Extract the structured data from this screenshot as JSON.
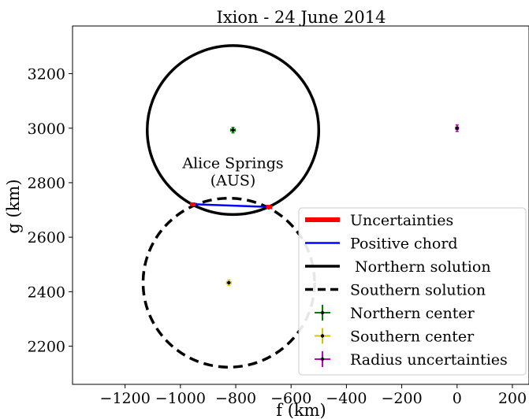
{
  "chart_data": {
    "type": "scatter",
    "title": "Ixion - 24 June 2014",
    "xlabel": "f (km)",
    "ylabel": "g (km)",
    "xlim": [
      -1390,
      260
    ],
    "ylim": [
      2060,
      3375
    ],
    "x_ticks": [
      -1200,
      -1000,
      -800,
      -600,
      -400,
      -200,
      0,
      200
    ],
    "x_tick_labels": [
      "−1200",
      "−1000",
      "−800",
      "−600",
      "−400",
      "−200",
      "0",
      "200"
    ],
    "y_ticks": [
      2200,
      2400,
      2600,
      2800,
      3000,
      3200
    ],
    "y_tick_labels": [
      "2200",
      "2400",
      "2600",
      "2800",
      "3000",
      "3200"
    ],
    "grid": false,
    "legend_position": "lower-right",
    "legend": [
      {
        "label": "Uncertainties",
        "style": "thick-line",
        "color": "#ff0000"
      },
      {
        "label": "Positive chord",
        "style": "line",
        "color": "#0000ff"
      },
      {
        "label": " Northern solution",
        "style": "line",
        "color": "#000000"
      },
      {
        "label": "Southern solution",
        "style": "dashed-line",
        "color": "#000000"
      },
      {
        "label": "Northern center",
        "style": "errorbar",
        "color": "#008000"
      },
      {
        "label": "Southern center",
        "style": "errorbar",
        "color": "#d4c400"
      },
      {
        "label": "Radius uncertainties",
        "style": "errorbar",
        "color": "#c000c0"
      }
    ],
    "annotation": {
      "lines": [
        "Alice Springs",
        "(AUS)"
      ],
      "x": -810,
      "y": 2795
    },
    "circles": [
      {
        "name": "Northern solution",
        "center": [
          -810,
          2993
        ],
        "radius": 310,
        "color": "#000000",
        "dashed": false
      },
      {
        "name": "Southern solution",
        "center": [
          -825,
          2433
        ],
        "radius": 310,
        "color": "#000000",
        "dashed": true
      }
    ],
    "positive_chord": {
      "x": [
        -950,
        -680
      ],
      "y": [
        2721,
        2711
      ],
      "color": "#0000ff"
    },
    "uncertainties": [
      {
        "x": [
          -965,
          -945
        ],
        "y": [
          2721,
          2720
        ],
        "color": "#ff0000"
      },
      {
        "x": [
          -690,
          -668
        ],
        "y": [
          2712,
          2710
        ],
        "color": "#ff0000"
      }
    ],
    "points": [
      {
        "name": "Northern center",
        "x": -810,
        "y": 2993,
        "x_err": 8,
        "y_err": 10,
        "color": "#008000"
      },
      {
        "name": "Southern center",
        "x": -825,
        "y": 2433,
        "x_err": 8,
        "y_err": 10,
        "color": "#d4c400"
      },
      {
        "name": "Radius uncertainties",
        "x": 0,
        "y": 3000,
        "x_err": 5,
        "y_err": 12,
        "color": "#c000c0"
      }
    ]
  }
}
